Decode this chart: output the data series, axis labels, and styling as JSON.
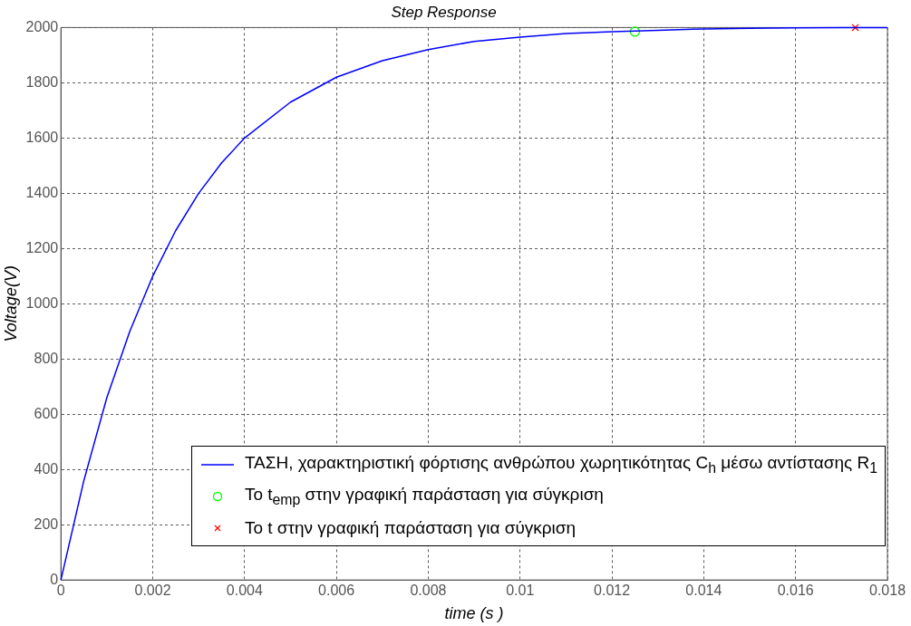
{
  "chart_data": {
    "type": "line",
    "title": "Step Response",
    "xlabel": "time (s )",
    "ylabel": "Voltage(V)",
    "xlim": [
      0,
      0.018
    ],
    "xticks": [
      0,
      0.002,
      0.004,
      0.006,
      0.008,
      0.01,
      0.012,
      0.014,
      0.016,
      0.018
    ],
    "ylim": [
      0,
      2000
    ],
    "yticks": [
      0,
      200,
      400,
      600,
      800,
      1000,
      1200,
      1400,
      1600,
      1800,
      2000
    ],
    "grid": true,
    "legend": "bottom right",
    "series": [
      {
        "name": "ΤΑΣΗ, χαρακτηριστική φόρτισης ανθρώπου χωρητικότητας C$_{h}$ μέσω αντίστασης R$_{1}$",
        "color": "#0000ff",
        "marker": "none",
        "x": [
          0,
          0.0005,
          0.001,
          0.0015,
          0.002,
          0.0025,
          0.003,
          0.0035,
          0.004,
          0.005,
          0.006,
          0.007,
          0.008,
          0.009,
          0.01,
          0.011,
          0.012,
          0.013,
          0.014,
          0.015,
          0.016,
          0.017,
          0.018
        ],
        "values": [
          0,
          360,
          660,
          900,
          1100,
          1265,
          1400,
          1510,
          1600,
          1730,
          1820,
          1880,
          1920,
          1950,
          1965,
          1978,
          1985,
          1990,
          1995,
          1997,
          1999,
          2000,
          2000
        ]
      },
      {
        "name": "Το t$_{emp}$ στην γραφική παράσταση για σύγκριση",
        "type": "scatter",
        "color": "#00ff00",
        "marker": "circle",
        "x": [
          0.0125
        ],
        "values": [
          1985
        ]
      },
      {
        "name": "Το t στην γραφική παράσταση για σύγκριση",
        "type": "scatter",
        "color": "#ff0000",
        "marker": "cross",
        "x": [
          0.0173
        ],
        "values": [
          2000
        ]
      }
    ]
  }
}
